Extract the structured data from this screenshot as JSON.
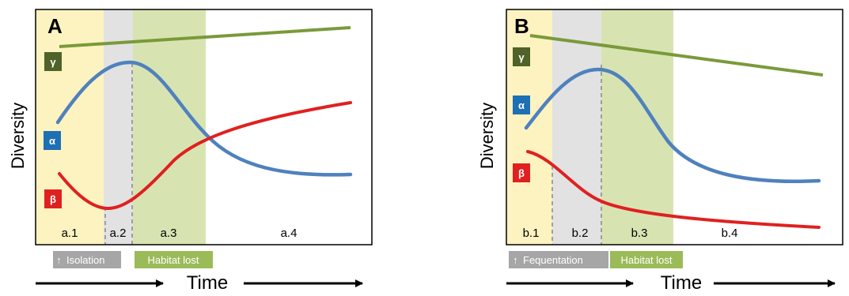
{
  "colors": {
    "gamma": "#7a9a3a",
    "gamma_badge": "#4f6228",
    "alpha": "#4f81bd",
    "alpha_badge": "#1f6fb4",
    "beta": "#e02020",
    "beta_badge": "#e02020",
    "phase_yellow": "#fdf3c0",
    "phase_grey": "#e2e2e2",
    "phase_green": "#d7e4b2",
    "tag_grey": "#a6a6a6",
    "tag_green": "#9bbb59"
  },
  "panels": [
    {
      "letter": "A",
      "ylabel": "Diversity",
      "badges": {
        "gamma": "γ",
        "alpha": "α",
        "beta": "β"
      },
      "phases": [
        "a.1",
        "a.2",
        "a.3",
        "a.4"
      ],
      "tags": {
        "first": "Isolation",
        "second": "Habitat lost"
      },
      "time_label": "Time"
    },
    {
      "letter": "B",
      "ylabel": "Diversity",
      "badges": {
        "gamma": "γ",
        "alpha": "α",
        "beta": "β"
      },
      "phases": [
        "b.1",
        "b.2",
        "b.3",
        "b.4"
      ],
      "tags": {
        "first": "Fequentation",
        "second": "Habitat lost"
      },
      "time_label": "Time"
    }
  ]
}
